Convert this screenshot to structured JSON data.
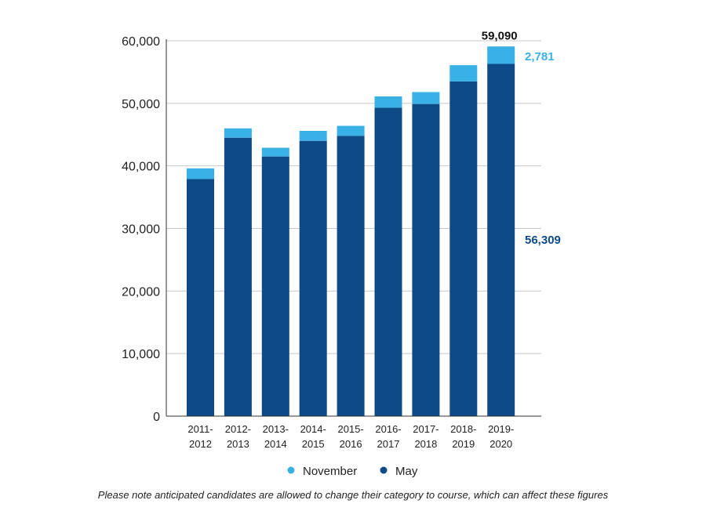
{
  "chart_data": {
    "type": "bar",
    "stacked": true,
    "categories": [
      [
        "2011-",
        "2012"
      ],
      [
        "2012-",
        "2013"
      ],
      [
        "2013-",
        "2014"
      ],
      [
        "2014-",
        "2015"
      ],
      [
        "2015-",
        "2016"
      ],
      [
        "2016-",
        "2017"
      ],
      [
        "2017-",
        "2018"
      ],
      [
        "2018-",
        "2019"
      ],
      [
        "2019-",
        "2020"
      ]
    ],
    "series": [
      {
        "name": "May",
        "color": "#0d4a87",
        "values": [
          37900,
          44500,
          41500,
          44000,
          44800,
          49300,
          49900,
          53500,
          56309
        ]
      },
      {
        "name": "November",
        "color": "#39b0e6",
        "values": [
          1700,
          1500,
          1400,
          1600,
          1600,
          1800,
          1900,
          2600,
          2781
        ]
      }
    ],
    "ylim": [
      0,
      60000
    ],
    "yticks": [
      0,
      10000,
      20000,
      30000,
      40000,
      50000,
      60000
    ],
    "ytick_labels": [
      "0",
      "10,000",
      "20,000",
      "30,000",
      "40,000",
      "50,000",
      "60,000"
    ],
    "grid": true,
    "legend_position": "bottom",
    "legend": [
      "November",
      "May"
    ],
    "annotations": {
      "total": {
        "text": "59,090",
        "color": "#111111"
      },
      "november": {
        "text": "2,781",
        "color": "#39b0e6"
      },
      "may": {
        "text": "56,309",
        "color": "#0d4a87"
      }
    },
    "xlabel": "",
    "ylabel": "",
    "title": ""
  },
  "footnote": "Please note anticipated candidates are allowed to change their category to course, which can affect these figures"
}
